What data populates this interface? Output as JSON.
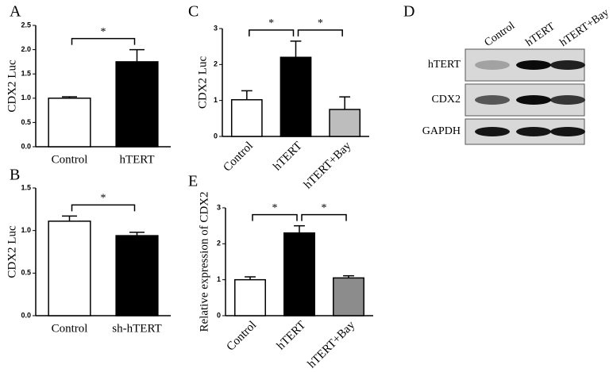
{
  "chart_data": [
    {
      "type": "bar",
      "title": "A",
      "y_label": "CDX2 Luc",
      "categories": [
        "Control",
        "hTERT"
      ],
      "values": [
        1.0,
        1.75
      ],
      "errors": [
        0.03,
        0.25
      ],
      "colors": [
        "#ffffff",
        "#000000"
      ],
      "ylim": [
        0,
        2.5
      ],
      "yticks": [
        {
          "value": 0,
          "label": "0.0"
        },
        0.5,
        {
          "value": 1,
          "label": "1.0"
        },
        1.5,
        {
          "value": 2,
          "label": "2.0"
        },
        2.5
      ],
      "annotations": [
        "*"
      ]
    },
    {
      "type": "bar",
      "title": "B",
      "y_label": "CDX2 Luc",
      "categories": [
        "Control",
        "sh-hTERT"
      ],
      "values": [
        1.11,
        0.94
      ],
      "errors": [
        0.06,
        0.04
      ],
      "colors": [
        "#ffffff",
        "#000000"
      ],
      "ylim": [
        0,
        1.5
      ],
      "yticks": [
        {
          "value": 0,
          "label": "0.0"
        },
        0.5,
        {
          "value": 1,
          "label": "1.0"
        },
        1.5
      ],
      "annotations": [
        "*"
      ]
    },
    {
      "type": "bar",
      "title": "C",
      "y_label": "CDX2 Luc",
      "categories": [
        "Control",
        "hTERT",
        "hTERT+Bay"
      ],
      "values": [
        1.02,
        2.2,
        0.75
      ],
      "errors": [
        0.25,
        0.45,
        0.35
      ],
      "colors": [
        "#ffffff",
        "#000000",
        "#bdbdbd"
      ],
      "ylim": [
        0,
        3
      ],
      "yticks": [
        0,
        1,
        2,
        3
      ],
      "annotations": [
        "*",
        "*"
      ]
    },
    {
      "type": "bar",
      "title": "E",
      "y_label": "Relative expression of CDX2",
      "categories": [
        "Control",
        "hTERT",
        "hTERT+Bay"
      ],
      "values": [
        1.0,
        2.3,
        1.05
      ],
      "errors": [
        0.08,
        0.2,
        0.06
      ],
      "colors": [
        "#ffffff",
        "#000000",
        "#8c8c8c"
      ],
      "ylim": [
        0,
        3
      ],
      "yticks": [
        0,
        1,
        2,
        3
      ],
      "annotations": [
        "*",
        "*"
      ]
    }
  ],
  "blot": {
    "label": "D",
    "columns": [
      "Control",
      "hTERT",
      "hTERT+Bay"
    ],
    "rows": [
      "hTERT",
      "CDX2",
      "GAPDH"
    ]
  }
}
